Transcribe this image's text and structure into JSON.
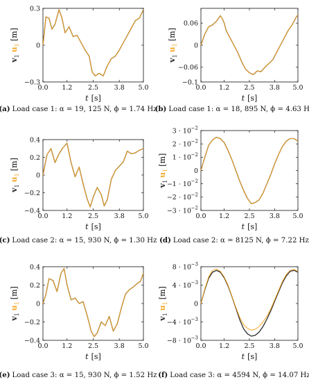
{
  "colors": {
    "v": "#2b2b2b",
    "u": "#f5a623",
    "axis": "#111111"
  },
  "legend": {
    "v_label": "v",
    "v_sub": "1",
    "u_label": "u",
    "u_sub": "1",
    "unit": "[m]"
  },
  "xaxis": {
    "label": "t",
    "unit": "[s]"
  },
  "chart_data": [
    {
      "id": "a",
      "type": "line",
      "caption_letter": "(a)",
      "caption": "Load case 1: α = 19, 125 N, ϕ = 1.74 Hz",
      "xlim": [
        0,
        5
      ],
      "ylim": [
        -0.3,
        0.3
      ],
      "xticks": [
        0.0,
        1.2,
        2.5,
        3.8,
        5.0
      ],
      "xtick_labels": [
        "0.0",
        "1.2",
        "2.5",
        "3.8",
        "5.0"
      ],
      "yticks": [
        -0.3,
        0,
        0.3
      ],
      "ytick_labels": [
        "−0.3",
        "0",
        "0.3"
      ],
      "series": [
        {
          "key": "v",
          "x": [
            0,
            0.15,
            0.3,
            0.45,
            0.6,
            0.8,
            0.95,
            1.1,
            1.3,
            1.5,
            1.7,
            1.9,
            2.1,
            2.3,
            2.45,
            2.6,
            2.8,
            3.0,
            3.2,
            3.4,
            3.6,
            3.8,
            4.0,
            4.2,
            4.4,
            4.6,
            4.8,
            5.0
          ],
          "y": [
            0.0,
            0.23,
            0.22,
            0.13,
            0.17,
            0.29,
            0.22,
            0.1,
            0.15,
            0.07,
            0.08,
            0.02,
            -0.04,
            -0.09,
            -0.22,
            -0.25,
            -0.23,
            -0.25,
            -0.17,
            -0.11,
            -0.09,
            -0.04,
            0.02,
            0.08,
            0.14,
            0.2,
            0.22,
            0.29
          ]
        },
        {
          "key": "u",
          "x": [
            0,
            0.15,
            0.3,
            0.45,
            0.6,
            0.8,
            0.95,
            1.1,
            1.3,
            1.5,
            1.7,
            1.9,
            2.1,
            2.3,
            2.45,
            2.6,
            2.8,
            3.0,
            3.2,
            3.4,
            3.6,
            3.8,
            4.0,
            4.2,
            4.4,
            4.6,
            4.8,
            5.0
          ],
          "y": [
            0.0,
            0.23,
            0.22,
            0.13,
            0.17,
            0.29,
            0.22,
            0.1,
            0.15,
            0.07,
            0.08,
            0.02,
            -0.04,
            -0.09,
            -0.22,
            -0.25,
            -0.23,
            -0.25,
            -0.17,
            -0.11,
            -0.09,
            -0.04,
            0.02,
            0.08,
            0.14,
            0.2,
            0.22,
            0.29
          ]
        }
      ]
    },
    {
      "id": "b",
      "type": "line",
      "caption_letter": "(b)",
      "caption": "Load case 1: α = 18, 895 N, ϕ = 4.63 Hz",
      "xlim": [
        0,
        5
      ],
      "ylim": [
        -0.1,
        0.1
      ],
      "xticks": [
        0.0,
        1.2,
        2.5,
        3.8,
        5.0
      ],
      "xtick_labels": [
        "0.0",
        "1.2",
        "2.5",
        "3.8",
        "5.0"
      ],
      "yticks": [
        -0.1,
        -0.06,
        0,
        0.06
      ],
      "ytick_labels": [
        "−0.1",
        "−0.06",
        "0",
        "0.06"
      ],
      "series": [
        {
          "key": "v",
          "x": [
            0,
            0.2,
            0.4,
            0.6,
            0.8,
            1.0,
            1.1,
            1.2,
            1.3,
            1.5,
            1.7,
            1.9,
            2.1,
            2.3,
            2.5,
            2.7,
            2.9,
            3.1,
            3.3,
            3.5,
            3.7,
            3.9,
            4.1,
            4.3,
            4.5,
            4.7,
            4.9,
            5.0
          ],
          "y": [
            0.0,
            0.03,
            0.05,
            0.055,
            0.065,
            0.08,
            0.072,
            0.06,
            0.04,
            0.02,
            0.0,
            -0.02,
            -0.045,
            -0.065,
            -0.075,
            -0.08,
            -0.07,
            -0.072,
            -0.06,
            -0.05,
            -0.04,
            -0.02,
            0.0,
            0.02,
            0.04,
            0.055,
            0.075,
            0.082
          ]
        },
        {
          "key": "u",
          "x": [
            0,
            0.2,
            0.4,
            0.6,
            0.8,
            1.0,
            1.1,
            1.2,
            1.3,
            1.5,
            1.7,
            1.9,
            2.1,
            2.3,
            2.5,
            2.7,
            2.9,
            3.1,
            3.3,
            3.5,
            3.7,
            3.9,
            4.1,
            4.3,
            4.5,
            4.7,
            4.9,
            5.0
          ],
          "y": [
            0.0,
            0.03,
            0.05,
            0.055,
            0.065,
            0.08,
            0.072,
            0.06,
            0.04,
            0.02,
            0.0,
            -0.02,
            -0.045,
            -0.065,
            -0.075,
            -0.08,
            -0.07,
            -0.072,
            -0.06,
            -0.05,
            -0.04,
            -0.02,
            0.0,
            0.02,
            0.04,
            0.055,
            0.075,
            0.082
          ]
        }
      ]
    },
    {
      "id": "c",
      "type": "line",
      "caption_letter": "(c)",
      "caption": "Load case 2: α = 15, 930 N, ϕ = 1.30 Hz",
      "xlim": [
        0,
        5
      ],
      "ylim": [
        -0.4,
        0.4
      ],
      "xticks": [
        0.0,
        1.2,
        2.5,
        3.8,
        5.0
      ],
      "xtick_labels": [
        "0.0",
        "1.2",
        "2.5",
        "3.8",
        "5.0"
      ],
      "yticks": [
        -0.4,
        -0.2,
        0,
        0.2,
        0.4
      ],
      "ytick_labels": [
        "−0.4",
        "−0.2",
        "0",
        "0.2",
        "0.4"
      ],
      "series": [
        {
          "key": "v",
          "x": [
            0,
            0.2,
            0.4,
            0.6,
            0.8,
            1.0,
            1.2,
            1.4,
            1.6,
            1.8,
            2.0,
            2.2,
            2.35,
            2.5,
            2.7,
            2.9,
            3.05,
            3.2,
            3.4,
            3.6,
            3.8,
            4.0,
            4.2,
            4.4,
            4.6,
            4.8,
            5.0
          ],
          "y": [
            0.0,
            0.23,
            0.3,
            0.14,
            0.24,
            0.31,
            0.36,
            0.14,
            -0.02,
            0.09,
            -0.1,
            -0.27,
            -0.36,
            -0.25,
            -0.14,
            -0.22,
            -0.35,
            -0.28,
            -0.05,
            0.05,
            0.1,
            0.15,
            0.27,
            0.24,
            0.25,
            0.28,
            0.3
          ]
        },
        {
          "key": "u",
          "x": [
            0,
            0.2,
            0.4,
            0.6,
            0.8,
            1.0,
            1.2,
            1.4,
            1.6,
            1.8,
            2.0,
            2.2,
            2.35,
            2.5,
            2.7,
            2.9,
            3.05,
            3.2,
            3.4,
            3.6,
            3.8,
            4.0,
            4.2,
            4.4,
            4.6,
            4.8,
            5.0
          ],
          "y": [
            0.0,
            0.23,
            0.3,
            0.14,
            0.24,
            0.31,
            0.36,
            0.14,
            -0.02,
            0.09,
            -0.1,
            -0.27,
            -0.36,
            -0.25,
            -0.14,
            -0.22,
            -0.35,
            -0.28,
            -0.05,
            0.05,
            0.1,
            0.15,
            0.27,
            0.24,
            0.25,
            0.28,
            0.3
          ]
        }
      ]
    },
    {
      "id": "d",
      "type": "line",
      "caption_letter": "(d)",
      "caption": "Load case 2: α = 8125 N, ϕ = 7.22 Hz",
      "xlim": [
        0,
        5
      ],
      "ylim": [
        -0.03,
        0.03
      ],
      "xticks": [
        0.0,
        1.2,
        2.5,
        3.8,
        5.0
      ],
      "xtick_labels": [
        "0.0",
        "1.2",
        "2.5",
        "3.8",
        "5.0"
      ],
      "yticks": [
        -0.03,
        -0.02,
        -0.01,
        0,
        0.01,
        0.02,
        0.03
      ],
      "ytick_labels": [
        "−3 · 10",
        "−2 · 10",
        "−1 · 10",
        "0",
        "1 · 10",
        "2 · 10",
        "3 · 10"
      ],
      "ytick_exp": "−2",
      "series": [
        {
          "key": "v",
          "x": [
            0,
            0.2,
            0.4,
            0.6,
            0.8,
            1.0,
            1.2,
            1.4,
            1.6,
            1.8,
            2.0,
            2.2,
            2.4,
            2.6,
            2.8,
            3.0,
            3.2,
            3.4,
            3.6,
            3.8,
            4.0,
            4.2,
            4.4,
            4.6,
            4.8,
            5.0
          ],
          "y": [
            0.0,
            0.01,
            0.019,
            0.023,
            0.025,
            0.024,
            0.021,
            0.015,
            0.008,
            0.0,
            -0.008,
            -0.015,
            -0.021,
            -0.025,
            -0.024,
            -0.022,
            -0.017,
            -0.01,
            -0.003,
            0.005,
            0.012,
            0.018,
            0.022,
            0.024,
            0.024,
            0.022
          ]
        },
        {
          "key": "u",
          "x": [
            0,
            0.2,
            0.4,
            0.6,
            0.8,
            1.0,
            1.2,
            1.4,
            1.6,
            1.8,
            2.0,
            2.2,
            2.4,
            2.6,
            2.8,
            3.0,
            3.2,
            3.4,
            3.6,
            3.8,
            4.0,
            4.2,
            4.4,
            4.6,
            4.8,
            5.0
          ],
          "y": [
            0.0,
            0.01,
            0.019,
            0.023,
            0.025,
            0.024,
            0.021,
            0.015,
            0.008,
            0.0,
            -0.008,
            -0.015,
            -0.021,
            -0.025,
            -0.024,
            -0.022,
            -0.017,
            -0.01,
            -0.003,
            0.005,
            0.012,
            0.018,
            0.022,
            0.024,
            0.024,
            0.022
          ]
        }
      ]
    },
    {
      "id": "e",
      "type": "line",
      "caption_letter": "(e)",
      "caption": "Load case 3: α = 15, 930 N, ϕ = 1.52 Hz",
      "xlim": [
        0,
        5
      ],
      "ylim": [
        -0.4,
        0.4
      ],
      "xticks": [
        0.0,
        1.2,
        2.5,
        3.8,
        5.0
      ],
      "xtick_labels": [
        "0.0",
        "1.2",
        "2.5",
        "3.8",
        "5.0"
      ],
      "yticks": [
        -0.4,
        -0.2,
        0,
        0.2,
        0.4
      ],
      "ytick_labels": [
        "−0.4",
        "−0.2",
        "0",
        "0.2",
        "0.4"
      ],
      "series": [
        {
          "key": "v",
          "x": [
            0,
            0.15,
            0.3,
            0.5,
            0.7,
            0.9,
            1.05,
            1.2,
            1.4,
            1.6,
            1.8,
            2.0,
            2.2,
            2.4,
            2.55,
            2.7,
            2.9,
            3.1,
            3.3,
            3.5,
            3.7,
            3.9,
            4.1,
            4.3,
            4.5,
            4.7,
            4.85,
            5.0
          ],
          "y": [
            0.0,
            0.1,
            0.27,
            0.25,
            0.13,
            0.33,
            0.38,
            0.2,
            0.04,
            0.06,
            0.0,
            0.02,
            -0.13,
            -0.3,
            -0.36,
            -0.32,
            -0.2,
            -0.24,
            -0.14,
            -0.3,
            -0.22,
            -0.05,
            0.1,
            0.15,
            0.18,
            0.22,
            0.24,
            0.33
          ]
        },
        {
          "key": "u",
          "x": [
            0,
            0.15,
            0.3,
            0.5,
            0.7,
            0.9,
            1.05,
            1.2,
            1.4,
            1.6,
            1.8,
            2.0,
            2.2,
            2.4,
            2.55,
            2.7,
            2.9,
            3.1,
            3.3,
            3.5,
            3.7,
            3.9,
            4.1,
            4.3,
            4.5,
            4.7,
            4.85,
            5.0
          ],
          "y": [
            0.0,
            0.1,
            0.27,
            0.25,
            0.13,
            0.33,
            0.38,
            0.2,
            0.04,
            0.06,
            0.0,
            0.02,
            -0.13,
            -0.3,
            -0.36,
            -0.32,
            -0.2,
            -0.24,
            -0.14,
            -0.3,
            -0.22,
            -0.05,
            0.1,
            0.15,
            0.18,
            0.22,
            0.24,
            0.33
          ]
        }
      ]
    },
    {
      "id": "f",
      "type": "line",
      "caption_letter": "(f)",
      "caption": "Load case 3: α = 4594 N, ϕ = 14.07 Hz",
      "xlim": [
        0,
        5
      ],
      "ylim": [
        -0.008,
        0.008
      ],
      "xticks": [
        0.0,
        1.2,
        2.5,
        3.8,
        5.0
      ],
      "xtick_labels": [
        "0.0",
        "1.2",
        "2.5",
        "3.8",
        "5.0"
      ],
      "yticks": [
        -0.008,
        -0.004,
        0,
        0.004,
        0.008
      ],
      "ytick_labels": [
        "−8 · 10",
        "−4 · 10",
        "0",
        "4 · 10",
        "8 · 10"
      ],
      "ytick_exp": "−3",
      "series": [
        {
          "key": "v",
          "x": [
            0,
            0.2,
            0.4,
            0.6,
            0.8,
            1.0,
            1.2,
            1.4,
            1.6,
            1.8,
            2.0,
            2.2,
            2.4,
            2.6,
            2.8,
            3.0,
            3.2,
            3.4,
            3.6,
            3.8,
            4.0,
            4.2,
            4.4,
            4.6,
            4.8,
            5.0
          ],
          "y": [
            0.0,
            0.003,
            0.0055,
            0.0068,
            0.0072,
            0.0068,
            0.0056,
            0.0038,
            0.0015,
            -0.001,
            -0.0035,
            -0.0055,
            -0.0066,
            -0.0071,
            -0.0069,
            -0.0062,
            -0.005,
            -0.0034,
            -0.0016,
            0.0005,
            0.0025,
            0.0045,
            0.006,
            0.007,
            0.0072,
            0.0068
          ]
        },
        {
          "key": "u",
          "x": [
            0,
            0.2,
            0.4,
            0.6,
            0.8,
            1.0,
            1.2,
            1.4,
            1.6,
            1.8,
            2.0,
            2.2,
            2.4,
            2.6,
            2.8,
            3.0,
            3.2,
            3.4,
            3.6,
            3.8,
            4.0,
            4.2,
            4.4,
            4.6,
            4.8,
            5.0
          ],
          "y": [
            0.0,
            0.0032,
            0.0058,
            0.0072,
            0.0075,
            0.007,
            0.0058,
            0.004,
            0.0016,
            -0.0008,
            -0.003,
            -0.0046,
            -0.0054,
            -0.0058,
            -0.0056,
            -0.005,
            -0.004,
            -0.0028,
            -0.0012,
            0.0008,
            0.0028,
            0.0048,
            0.0063,
            0.0072,
            0.0074,
            0.007
          ]
        }
      ]
    }
  ]
}
